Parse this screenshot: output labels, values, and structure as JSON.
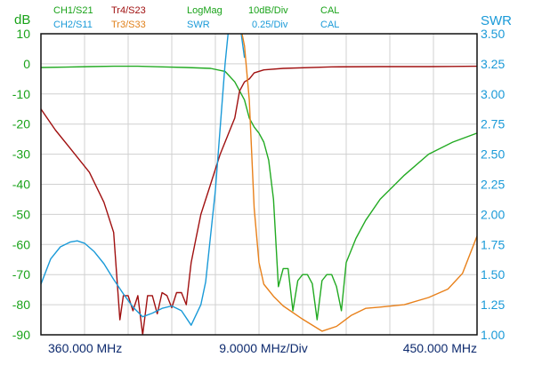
{
  "header": {
    "row1": [
      {
        "text": "CH1/S21",
        "color": "#1aa31a"
      },
      {
        "text": "Tr4/S23",
        "color": "#a01010"
      },
      {
        "text": "LogMag",
        "color": "#1aa31a"
      },
      {
        "text": "10dB/Div",
        "color": "#1aa31a"
      },
      {
        "text": "CAL",
        "color": "#1aa31a"
      }
    ],
    "row2": [
      {
        "text": "CH2/S11",
        "color": "#1a9ad8"
      },
      {
        "text": "Tr3/S33",
        "color": "#e0801a"
      },
      {
        "text": "SWR",
        "color": "#1a9ad8"
      },
      {
        "text": "0.25/Div",
        "color": "#1a9ad8"
      },
      {
        "text": "CAL",
        "color": "#1a9ad8"
      }
    ]
  },
  "colors": {
    "s21": "#22aa22",
    "s23": "#a01010",
    "s11": "#1a9ad8",
    "s33": "#e8801a",
    "grid": "#d0d0d0",
    "frame": "#111111",
    "footer": "#0d2a6e"
  },
  "chart_data": {
    "type": "line",
    "x_start": "360.000 MHz",
    "x_center_label": "9.0000 MHz/Div",
    "x_stop": "450.000 MHz",
    "x_range_mhz": [
      360,
      450
    ],
    "y_left": {
      "unit": "dB",
      "range": [
        -90,
        10
      ],
      "ticks": [
        "10",
        "0",
        "-10",
        "-20",
        "-30",
        "-40",
        "-50",
        "-60",
        "-70",
        "-80",
        "-90"
      ]
    },
    "y_right": {
      "unit": "SWR",
      "range": [
        1.0,
        3.5
      ],
      "ticks": [
        "3.50",
        "3.25",
        "3.00",
        "2.75",
        "2.50",
        "2.25",
        "2.00",
        "1.75",
        "1.50",
        "1.25",
        "1.00"
      ]
    },
    "grid": true,
    "series": [
      {
        "name": "CH1/S21",
        "axis": "left",
        "color": "#22aa22",
        "x": [
          360,
          365,
          370,
          375,
          380,
          385,
          390,
          395,
          398,
          400,
          402,
          403,
          404,
          405,
          406,
          407,
          408,
          409,
          410,
          411,
          412,
          413,
          414,
          415,
          416,
          417,
          418,
          419,
          420,
          421,
          422,
          423,
          425,
          427,
          430,
          435,
          440,
          445,
          450
        ],
        "y": [
          -1.2,
          -1.1,
          -0.9,
          -0.8,
          -0.8,
          -1.0,
          -1.2,
          -1.5,
          -2.5,
          -6,
          -12,
          -18,
          -21,
          -23,
          -26,
          -32,
          -45,
          -74,
          -68,
          -68,
          -82,
          -72,
          -70,
          -70,
          -73,
          -85,
          -72,
          -70,
          -70,
          -74,
          -82,
          -66,
          -58,
          -52,
          -45,
          -37,
          -30,
          -26,
          -23
        ]
      },
      {
        "name": "Tr4/S23",
        "axis": "left",
        "color": "#a01010",
        "x": [
          360,
          363,
          366,
          370,
          373,
          375,
          376.3,
          377,
          378,
          379,
          380,
          381,
          382,
          383,
          384,
          385,
          386,
          387,
          388,
          389,
          390,
          391,
          392,
          393,
          395,
          397,
          399,
          400,
          401,
          402,
          403,
          404,
          406,
          410,
          420,
          430,
          440,
          450
        ],
        "y": [
          -15,
          -22,
          -28,
          -36,
          -46,
          -56,
          -85,
          -77,
          -77,
          -82,
          -77,
          -90,
          -77,
          -77,
          -83,
          -76,
          -77,
          -81,
          -76,
          -76,
          -80,
          -66,
          -58,
          -50,
          -40,
          -30,
          -22,
          -18,
          -9,
          -6,
          -5,
          -3,
          -2,
          -1.5,
          -1,
          -0.9,
          -0.9,
          -0.8
        ]
      },
      {
        "name": "CH2/S11",
        "axis": "right",
        "color": "#1a9ad8",
        "x": [
          360,
          362,
          364,
          366,
          367.5,
          369,
          371,
          373,
          375,
          377,
          379,
          381,
          383,
          385,
          387,
          389,
          391,
          393,
          394,
          396,
          398,
          399,
          400,
          401,
          402
        ],
        "y": [
          1.42,
          1.63,
          1.73,
          1.77,
          1.78,
          1.76,
          1.69,
          1.59,
          1.46,
          1.34,
          1.23,
          1.15,
          1.18,
          1.22,
          1.24,
          1.2,
          1.08,
          1.25,
          1.44,
          2.2,
          3.25,
          3.65,
          4.2,
          3.6,
          3.3
        ]
      },
      {
        "name": "Tr3/S33",
        "axis": "right",
        "color": "#e8801a",
        "x": [
          401,
          402,
          403,
          404,
          405,
          406,
          408,
          410,
          414,
          418,
          421,
          424,
          427,
          430,
          435,
          440,
          444,
          447,
          450
        ],
        "y": [
          3.6,
          3.4,
          2.95,
          2.05,
          1.6,
          1.42,
          1.32,
          1.24,
          1.13,
          1.03,
          1.07,
          1.16,
          1.22,
          1.23,
          1.25,
          1.31,
          1.38,
          1.51,
          1.82
        ]
      }
    ]
  }
}
